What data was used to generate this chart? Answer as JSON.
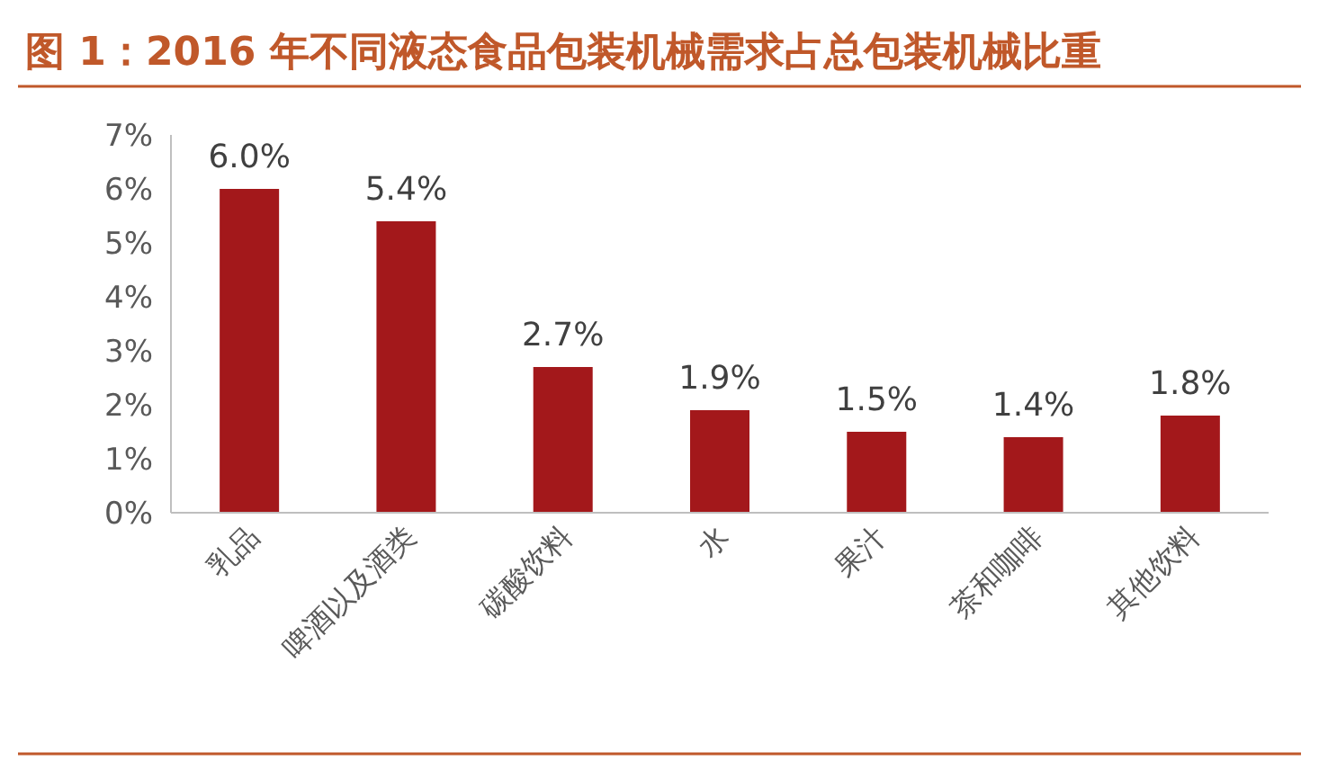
{
  "chart_data": {
    "type": "bar",
    "title": "图 1：2016 年不同液态食品包装机械需求占总包装机械比重",
    "categories": [
      "乳品",
      "啤酒以及酒类",
      "碳酸饮料",
      "水",
      "果汁",
      "茶和咖啡",
      "其他饮料"
    ],
    "values": [
      6.0,
      5.4,
      2.7,
      1.9,
      1.5,
      1.4,
      1.8
    ],
    "value_labels": [
      "6.0%",
      "5.4%",
      "2.7%",
      "1.9%",
      "1.5%",
      "1.4%",
      "1.8%"
    ],
    "color": "#a3181b",
    "ylim": [
      0,
      7
    ],
    "yticks": [
      {
        "value": 0,
        "label": "0%"
      },
      {
        "value": 1,
        "label": "1%"
      },
      {
        "value": 2,
        "label": "2%"
      },
      {
        "value": 3,
        "label": "3%"
      },
      {
        "value": 4,
        "label": "4%"
      },
      {
        "value": 5,
        "label": "5%"
      },
      {
        "value": 6,
        "label": "6%"
      },
      {
        "value": 7,
        "label": "7%"
      }
    ],
    "grid": false
  }
}
